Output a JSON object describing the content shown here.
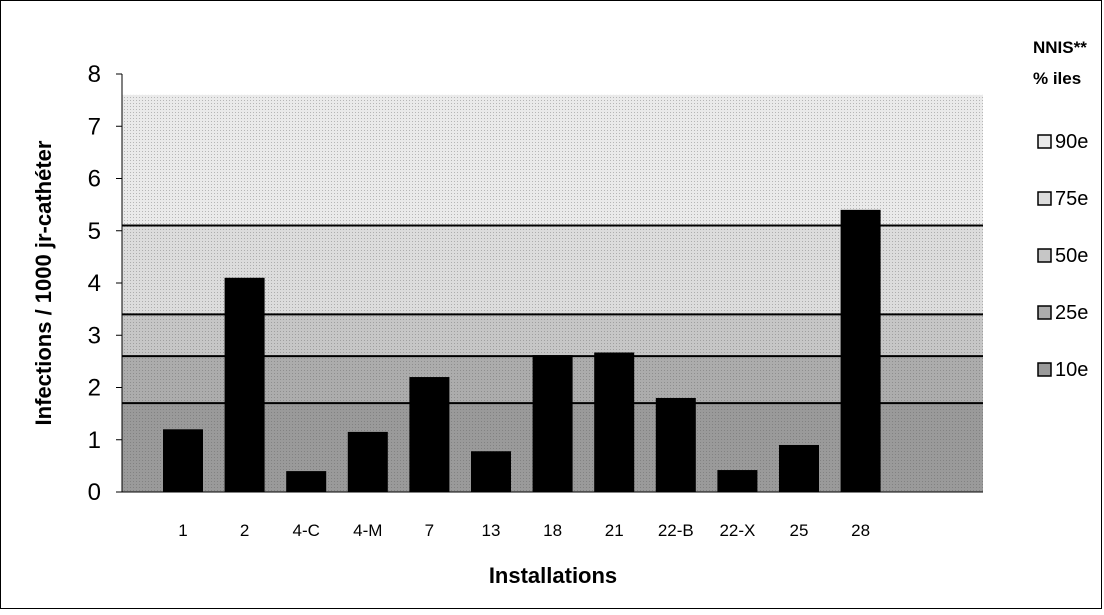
{
  "chart_data": {
    "type": "bar",
    "xlabel": "Installations",
    "ylabel": "Infections / 1000 jr-cathéter",
    "ylim": [
      0,
      8
    ],
    "yticks": [
      "0",
      "1",
      "2",
      "3",
      "4",
      "5",
      "6",
      "7",
      "8"
    ],
    "categories": [
      "1",
      "2",
      "4-C",
      "4-M",
      "7",
      "13",
      "18",
      "21",
      "22-B",
      "22-X",
      "25",
      "28"
    ],
    "values": [
      1.2,
      4.1,
      0.4,
      1.15,
      2.2,
      0.78,
      2.62,
      2.67,
      1.8,
      0.42,
      0.9,
      5.4
    ],
    "bar_color": "#000000",
    "grid": false,
    "bands": [
      {
        "label": "10e",
        "upper": 1.7,
        "color": "#9a9a9a"
      },
      {
        "label": "25e",
        "upper": 2.6,
        "color": "#acacac"
      },
      {
        "label": "50e",
        "upper": 3.4,
        "color": "#c6c6c6"
      },
      {
        "label": "75e",
        "upper": 5.1,
        "color": "#dcdcdc"
      },
      {
        "label": "90e",
        "upper": 7.6,
        "color": "#eaeaea"
      }
    ],
    "legend": {
      "position": "right",
      "title_line1": "NNIS**",
      "title_line2": "% iles",
      "entries": [
        "90e",
        "75e",
        "50e",
        "25e",
        "10e"
      ]
    }
  }
}
